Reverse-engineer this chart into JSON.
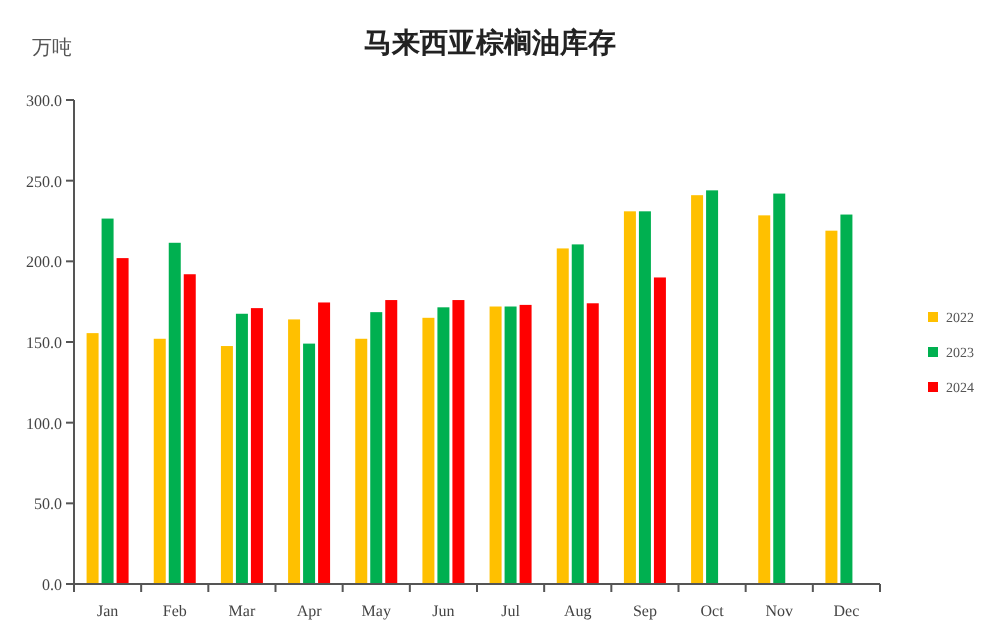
{
  "chart_data": {
    "type": "bar",
    "title": "马来西亚棕榈油库存",
    "ylabel": "万吨",
    "categories": [
      "Jan",
      "Feb",
      "Mar",
      "Apr",
      "May",
      "Jun",
      "Jul",
      "Aug",
      "Sep",
      "Oct",
      "Nov",
      "Dec"
    ],
    "series": [
      {
        "name": "2022",
        "color": "#ffc000",
        "values": [
          155.5,
          152,
          147.5,
          164,
          152,
          165,
          172,
          208,
          231,
          241,
          228.5,
          219
        ]
      },
      {
        "name": "2023",
        "color": "#00b050",
        "values": [
          226.5,
          211.5,
          167.5,
          149,
          168.5,
          171.5,
          172,
          210.5,
          231,
          244,
          242,
          229
        ]
      },
      {
        "name": "2024",
        "color": "#ff0000",
        "values": [
          202,
          192,
          171,
          174.5,
          176,
          176,
          173,
          174,
          190,
          null,
          null,
          null
        ]
      }
    ],
    "ylim": [
      0,
      300
    ],
    "yticks": [
      {
        "value": 0,
        "label": "0.0"
      },
      {
        "value": 50,
        "label": "50.0"
      },
      {
        "value": 100,
        "label": "100.0"
      },
      {
        "value": 150,
        "label": "150.0"
      },
      {
        "value": 200,
        "label": "200.0"
      },
      {
        "value": 250,
        "label": "250.0"
      },
      {
        "value": 300,
        "label": "300.0"
      }
    ],
    "grid": false,
    "legend": "right"
  }
}
